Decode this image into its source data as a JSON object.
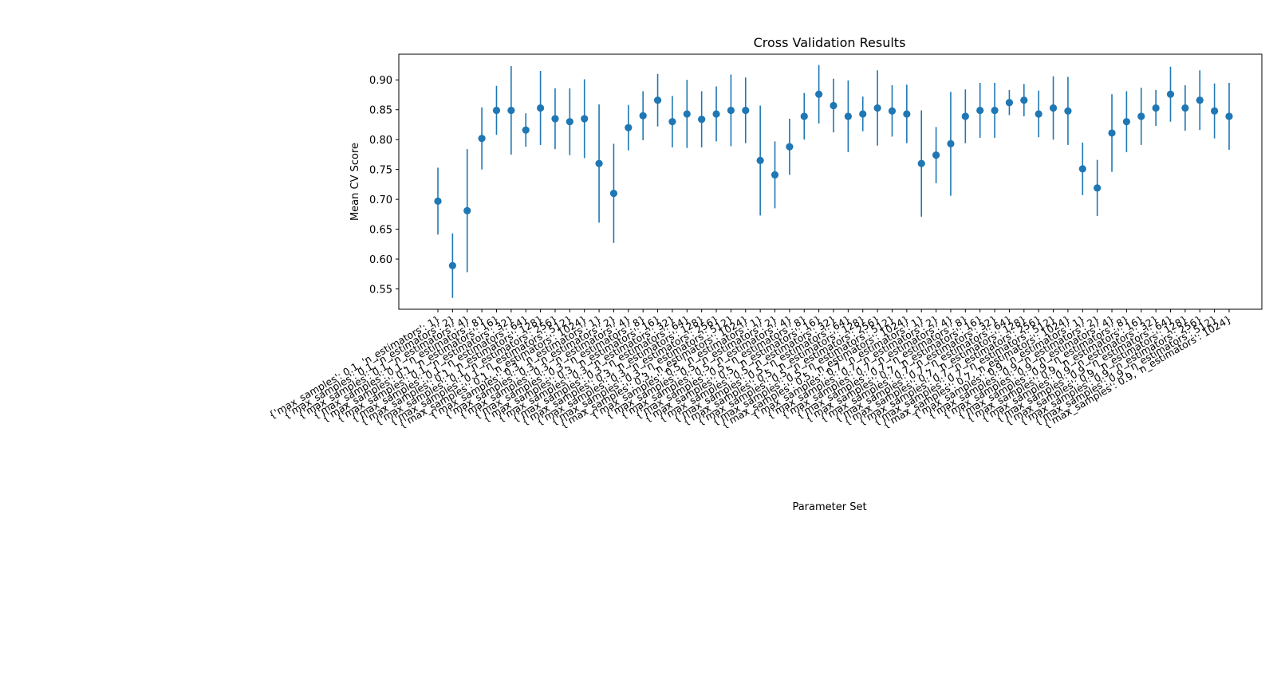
{
  "chart_data": {
    "type": "scatter",
    "title": "Cross Validation Results",
    "xlabel": "Parameter Set",
    "ylabel": "Mean CV Score",
    "ylim": [
      0.516,
      0.943
    ],
    "yticks": [
      0.55,
      0.6,
      0.65,
      0.7,
      0.75,
      0.8,
      0.85,
      0.9
    ],
    "ytick_labels": [
      "0.55",
      "0.60",
      "0.65",
      "0.70",
      "0.75",
      "0.80",
      "0.85",
      "0.90"
    ],
    "grid": false,
    "color": "#1f77b4",
    "categories": [
      "{'max_samples': 0.1, 'n_estimators': 1}",
      "{'max_samples': 0.1, 'n_estimators': 2}",
      "{'max_samples': 0.1, 'n_estimators': 4}",
      "{'max_samples': 0.1, 'n_estimators': 8}",
      "{'max_samples': 0.1, 'n_estimators': 16}",
      "{'max_samples': 0.1, 'n_estimators': 32}",
      "{'max_samples': 0.1, 'n_estimators': 64}",
      "{'max_samples': 0.1, 'n_estimators': 128}",
      "{'max_samples': 0.1, 'n_estimators': 256}",
      "{'max_samples': 0.1, 'n_estimators': 512}",
      "{'max_samples': 0.1, 'n_estimators': 1024}",
      "{'max_samples': 0.3, 'n_estimators': 1}",
      "{'max_samples': 0.3, 'n_estimators': 2}",
      "{'max_samples': 0.3, 'n_estimators': 4}",
      "{'max_samples': 0.3, 'n_estimators': 8}",
      "{'max_samples': 0.3, 'n_estimators': 16}",
      "{'max_samples': 0.3, 'n_estimators': 32}",
      "{'max_samples': 0.3, 'n_estimators': 64}",
      "{'max_samples': 0.3, 'n_estimators': 128}",
      "{'max_samples': 0.3, 'n_estimators': 256}",
      "{'max_samples': 0.3, 'n_estimators': 512}",
      "{'max_samples': 0.3, 'n_estimators': 1024}",
      "{'max_samples': 0.5, 'n_estimators': 1}",
      "{'max_samples': 0.5, 'n_estimators': 2}",
      "{'max_samples': 0.5, 'n_estimators': 4}",
      "{'max_samples': 0.5, 'n_estimators': 8}",
      "{'max_samples': 0.5, 'n_estimators': 16}",
      "{'max_samples': 0.5, 'n_estimators': 32}",
      "{'max_samples': 0.5, 'n_estimators': 64}",
      "{'max_samples': 0.5, 'n_estimators': 128}",
      "{'max_samples': 0.5, 'n_estimators': 256}",
      "{'max_samples': 0.5, 'n_estimators': 512}",
      "{'max_samples': 0.5, 'n_estimators': 1024}",
      "{'max_samples': 0.7, 'n_estimators': 1}",
      "{'max_samples': 0.7, 'n_estimators': 2}",
      "{'max_samples': 0.7, 'n_estimators': 4}",
      "{'max_samples': 0.7, 'n_estimators': 8}",
      "{'max_samples': 0.7, 'n_estimators': 16}",
      "{'max_samples': 0.7, 'n_estimators': 32}",
      "{'max_samples': 0.7, 'n_estimators': 64}",
      "{'max_samples': 0.7, 'n_estimators': 128}",
      "{'max_samples': 0.7, 'n_estimators': 256}",
      "{'max_samples': 0.7, 'n_estimators': 512}",
      "{'max_samples': 0.7, 'n_estimators': 1024}",
      "{'max_samples': 0.9, 'n_estimators': 1}",
      "{'max_samples': 0.9, 'n_estimators': 2}",
      "{'max_samples': 0.9, 'n_estimators': 4}",
      "{'max_samples': 0.9, 'n_estimators': 8}",
      "{'max_samples': 0.9, 'n_estimators': 16}",
      "{'max_samples': 0.9, 'n_estimators': 32}",
      "{'max_samples': 0.9, 'n_estimators': 64}",
      "{'max_samples': 0.9, 'n_estimators': 128}",
      "{'max_samples': 0.9, 'n_estimators': 256}",
      "{'max_samples': 0.9, 'n_estimators': 512}",
      "{'max_samples': 0.9, 'n_estimators': 1024}"
    ],
    "values": [
      0.697,
      0.589,
      0.681,
      0.802,
      0.849,
      0.849,
      0.816,
      0.853,
      0.835,
      0.83,
      0.835,
      0.76,
      0.71,
      0.82,
      0.84,
      0.866,
      0.83,
      0.843,
      0.834,
      0.843,
      0.849,
      0.849,
      0.765,
      0.741,
      0.788,
      0.839,
      0.876,
      0.857,
      0.839,
      0.843,
      0.853,
      0.848,
      0.843,
      0.76,
      0.774,
      0.793,
      0.839,
      0.849,
      0.849,
      0.862,
      0.866,
      0.843,
      0.853,
      0.848,
      0.751,
      0.719,
      0.811,
      0.83,
      0.839,
      0.853,
      0.876,
      0.853,
      0.866,
      0.848,
      0.839
    ],
    "error": [
      0.056,
      0.054,
      0.103,
      0.052,
      0.041,
      0.074,
      0.028,
      0.062,
      0.051,
      0.056,
      0.066,
      0.099,
      0.083,
      0.038,
      0.041,
      0.044,
      0.043,
      0.057,
      0.047,
      0.046,
      0.06,
      0.055,
      0.092,
      0.056,
      0.047,
      0.039,
      0.049,
      0.045,
      0.06,
      0.029,
      0.063,
      0.043,
      0.049,
      0.089,
      0.047,
      0.087,
      0.045,
      0.046,
      0.046,
      0.021,
      0.027,
      0.039,
      0.053,
      0.057,
      0.044,
      0.047,
      0.065,
      0.051,
      0.048,
      0.03,
      0.046,
      0.038,
      0.05,
      0.046,
      0.056
    ]
  }
}
